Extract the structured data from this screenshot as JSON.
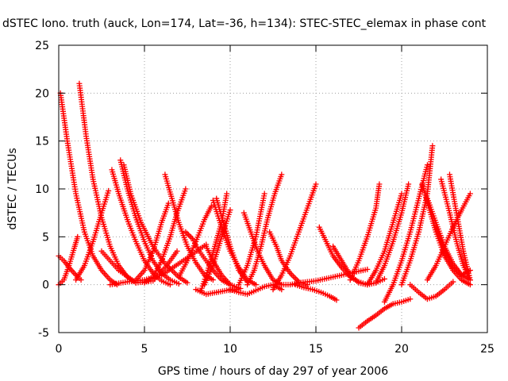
{
  "chart_data": {
    "type": "scatter",
    "title": "dSTEC Iono. truth (auck, Lon=174, Lat=-36, h=134): STEC-STEC_elemax in phase cont",
    "xlabel": "GPS time / hours of day 297 of year 2006",
    "ylabel": "dSTEC  / TECUs",
    "xlim": [
      0,
      25
    ],
    "ylim": [
      -5,
      25
    ],
    "x_ticks": [
      0,
      5,
      10,
      15,
      20,
      25
    ],
    "y_ticks": [
      -5,
      0,
      5,
      10,
      15,
      20,
      25
    ],
    "grid": true,
    "marker": "+",
    "marker_color": "#ff0000",
    "series": [
      {
        "x": [
          0.1,
          0.5,
          1.0,
          1.5,
          2.0,
          2.5,
          3.0,
          3.4
        ],
        "y": [
          20.0,
          15.0,
          9.5,
          5.5,
          3.0,
          1.5,
          0.5,
          0.0
        ]
      },
      {
        "x": [
          1.2,
          1.6,
          2.0,
          2.5,
          3.0,
          3.5,
          4.0,
          4.5
        ],
        "y": [
          21.0,
          15.5,
          11.0,
          7.0,
          4.0,
          2.0,
          0.8,
          0.2
        ]
      },
      {
        "x": [
          0.0,
          0.3,
          0.6,
          1.0,
          1.3
        ],
        "y": [
          3.0,
          2.5,
          1.8,
          1.0,
          0.5
        ]
      },
      {
        "x": [
          0.0,
          0.3,
          0.6,
          0.9,
          1.1
        ],
        "y": [
          0.0,
          0.5,
          2.0,
          3.8,
          5.0
        ]
      },
      {
        "x": [
          1.0,
          1.5,
          2.0,
          2.5,
          2.9
        ],
        "y": [
          0.5,
          2.0,
          4.5,
          7.5,
          9.8
        ]
      },
      {
        "x": [
          3.1,
          3.5,
          4.0,
          4.5,
          5.0,
          5.5,
          6.0,
          6.5
        ],
        "y": [
          12.0,
          9.5,
          6.8,
          4.5,
          2.5,
          1.2,
          0.4,
          0.0
        ]
      },
      {
        "x": [
          3.6,
          4.0,
          4.5,
          5.0,
          5.5,
          6.0,
          6.5,
          7.0
        ],
        "y": [
          13.0,
          10.0,
          7.0,
          4.5,
          2.5,
          1.2,
          0.5,
          0.1
        ]
      },
      {
        "x": [
          3.8,
          4.2,
          4.8,
          5.5,
          6.2,
          7.0,
          7.5
        ],
        "y": [
          12.5,
          9.5,
          6.5,
          4.0,
          2.2,
          0.8,
          0.2
        ]
      },
      {
        "x": [
          2.5,
          3.5,
          4.5,
          5.5,
          6.3,
          6.9
        ],
        "y": [
          3.5,
          1.5,
          0.2,
          0.4,
          2.0,
          3.5
        ]
      },
      {
        "x": [
          3.0,
          4.0,
          5.0,
          6.0,
          7.5,
          8.6
        ],
        "y": [
          0.0,
          0.3,
          0.5,
          1.0,
          2.8,
          4.2
        ]
      },
      {
        "x": [
          4.5,
          5.0,
          5.5,
          6.0,
          6.4
        ],
        "y": [
          0.5,
          1.5,
          3.5,
          6.5,
          8.5
        ]
      },
      {
        "x": [
          5.0,
          5.5,
          6.0,
          6.5,
          6.9,
          7.4
        ],
        "y": [
          0.2,
          0.8,
          2.5,
          5.0,
          7.5,
          10.0
        ]
      },
      {
        "x": [
          6.2,
          6.6,
          7.0,
          7.5,
          8.0,
          8.5,
          9.0
        ],
        "y": [
          11.5,
          9.0,
          6.5,
          4.0,
          2.3,
          1.0,
          0.5
        ]
      },
      {
        "x": [
          7.4,
          7.8,
          8.2,
          8.6,
          9.0,
          9.5,
          10.0
        ],
        "y": [
          5.5,
          4.8,
          3.5,
          2.5,
          1.5,
          0.5,
          0.0
        ]
      },
      {
        "x": [
          7.0,
          7.5,
          8.0,
          8.5,
          8.9
        ],
        "y": [
          0.8,
          2.5,
          4.5,
          6.8,
          8.2
        ]
      },
      {
        "x": [
          8.5,
          9.0,
          9.5,
          10.0
        ],
        "y": [
          0.0,
          2.0,
          5.0,
          7.8
        ]
      },
      {
        "x": [
          8.3,
          8.7,
          9.1,
          9.5,
          9.8
        ],
        "y": [
          -0.6,
          1.5,
          4.0,
          6.5,
          9.5
        ]
      },
      {
        "x": [
          9.0,
          9.5,
          10.0,
          10.5,
          11.0,
          11.5
        ],
        "y": [
          8.8,
          6.0,
          3.5,
          1.8,
          0.5,
          0.0
        ]
      },
      {
        "x": [
          9.2,
          9.6,
          10.0,
          10.5,
          11.0
        ],
        "y": [
          9.0,
          6.5,
          4.0,
          1.5,
          0.3
        ]
      },
      {
        "x": [
          8.6,
          9.0,
          9.5,
          10.0,
          10.6
        ],
        "y": [
          4.0,
          2.5,
          1.0,
          0.0,
          -0.4
        ]
      },
      {
        "x": [
          8.0,
          8.6,
          9.2,
          9.8,
          10.4
        ],
        "y": [
          -0.5,
          -1.0,
          -0.8,
          -0.6,
          -0.5
        ]
      },
      {
        "x": [
          10.0,
          10.5,
          11.0,
          11.5,
          12.0,
          12.5,
          13.0
        ],
        "y": [
          -0.5,
          -0.8,
          -1.0,
          -0.6,
          -0.2,
          0.0,
          -0.5
        ]
      },
      {
        "x": [
          11.0,
          11.4,
          11.8,
          12.2,
          12.6,
          13.0
        ],
        "y": [
          0.0,
          1.5,
          4.0,
          7.0,
          9.5,
          11.5
        ]
      },
      {
        "x": [
          10.5,
          11.0,
          11.5,
          12.0
        ],
        "y": [
          0.0,
          2.0,
          5.0,
          9.5
        ]
      },
      {
        "x": [
          10.8,
          11.2,
          11.6,
          12.0,
          12.5,
          13.0
        ],
        "y": [
          7.5,
          5.5,
          3.5,
          2.0,
          0.5,
          0.0
        ]
      },
      {
        "x": [
          12.3,
          12.7,
          13.0,
          13.5,
          14.0,
          14.5
        ],
        "y": [
          5.5,
          4.0,
          2.5,
          1.2,
          0.3,
          0.0
        ]
      },
      {
        "x": [
          12.5,
          13.0,
          13.5,
          14.0,
          14.5,
          15.0
        ],
        "y": [
          -0.5,
          1.0,
          3.0,
          5.5,
          8.0,
          10.5
        ]
      },
      {
        "x": [
          13.0,
          13.5,
          14.0,
          15.0,
          16.0,
          17.0,
          18.0
        ],
        "y": [
          0.0,
          0.0,
          0.2,
          0.4,
          0.8,
          1.2,
          1.6
        ]
      },
      {
        "x": [
          15.2,
          15.6,
          16.0,
          16.5,
          17.0,
          17.5,
          18.0
        ],
        "y": [
          6.0,
          4.5,
          3.0,
          1.8,
          0.8,
          0.3,
          0.0
        ]
      },
      {
        "x": [
          13.8,
          14.3,
          14.8,
          15.3,
          15.8,
          16.2
        ],
        "y": [
          0.0,
          -0.3,
          -0.5,
          -0.8,
          -1.2,
          -1.6
        ]
      },
      {
        "x": [
          16.0,
          16.5,
          17.0,
          17.5,
          18.0,
          18.5,
          19.0
        ],
        "y": [
          4.0,
          2.5,
          1.0,
          0.2,
          0.0,
          0.2,
          0.6
        ]
      },
      {
        "x": [
          17.0,
          17.5,
          18.0,
          18.5,
          18.7
        ],
        "y": [
          0.5,
          2.5,
          5.0,
          8.0,
          10.5
        ]
      },
      {
        "x": [
          17.5,
          18.0,
          18.5,
          19.0,
          19.5,
          20.0,
          20.5
        ],
        "y": [
          -4.5,
          -3.8,
          -3.2,
          -2.5,
          -2.0,
          -1.8,
          -1.5
        ]
      },
      {
        "x": [
          18.0,
          18.5,
          19.0,
          19.5,
          20.0
        ],
        "y": [
          0.0,
          1.5,
          3.5,
          6.5,
          9.5
        ]
      },
      {
        "x": [
          18.5,
          19.0,
          19.5,
          20.0,
          20.4
        ],
        "y": [
          0.2,
          2.0,
          4.5,
          7.5,
          10.5
        ]
      },
      {
        "x": [
          19.0,
          19.5,
          20.0,
          20.5,
          21.0,
          21.5
        ],
        "y": [
          -1.8,
          0.0,
          2.5,
          5.5,
          9.0,
          12.5
        ]
      },
      {
        "x": [
          20.0,
          20.5,
          21.0,
          21.5,
          21.8
        ],
        "y": [
          0.0,
          2.5,
          5.5,
          9.5,
          14.5
        ]
      },
      {
        "x": [
          20.5,
          21.0,
          21.5,
          22.0,
          22.5,
          23.0
        ],
        "y": [
          0.0,
          -0.8,
          -1.5,
          -1.2,
          -0.5,
          0.3
        ]
      },
      {
        "x": [
          21.2,
          21.6,
          22.0,
          22.5,
          23.0,
          23.5,
          24.0
        ],
        "y": [
          10.5,
          8.0,
          5.5,
          3.0,
          1.5,
          0.5,
          0.0
        ]
      },
      {
        "x": [
          21.5,
          22.0,
          22.5,
          23.0,
          23.5,
          24.0
        ],
        "y": [
          9.0,
          6.5,
          4.0,
          2.2,
          1.0,
          0.5
        ]
      },
      {
        "x": [
          22.3,
          22.8,
          23.2,
          23.6,
          24.0
        ],
        "y": [
          11.0,
          7.5,
          4.5,
          2.0,
          0.5
        ]
      },
      {
        "x": [
          22.8,
          23.2,
          23.6,
          24.0
        ],
        "y": [
          11.5,
          7.5,
          3.5,
          0.5
        ]
      },
      {
        "x": [
          21.5,
          22.0,
          22.5,
          23.0,
          23.5,
          24.0
        ],
        "y": [
          0.5,
          2.0,
          4.0,
          6.0,
          7.8,
          9.5
        ]
      },
      {
        "x": [
          22.0,
          22.5,
          23.0,
          23.5,
          24.0
        ],
        "y": [
          6.0,
          3.5,
          1.8,
          1.0,
          1.5
        ]
      }
    ]
  }
}
